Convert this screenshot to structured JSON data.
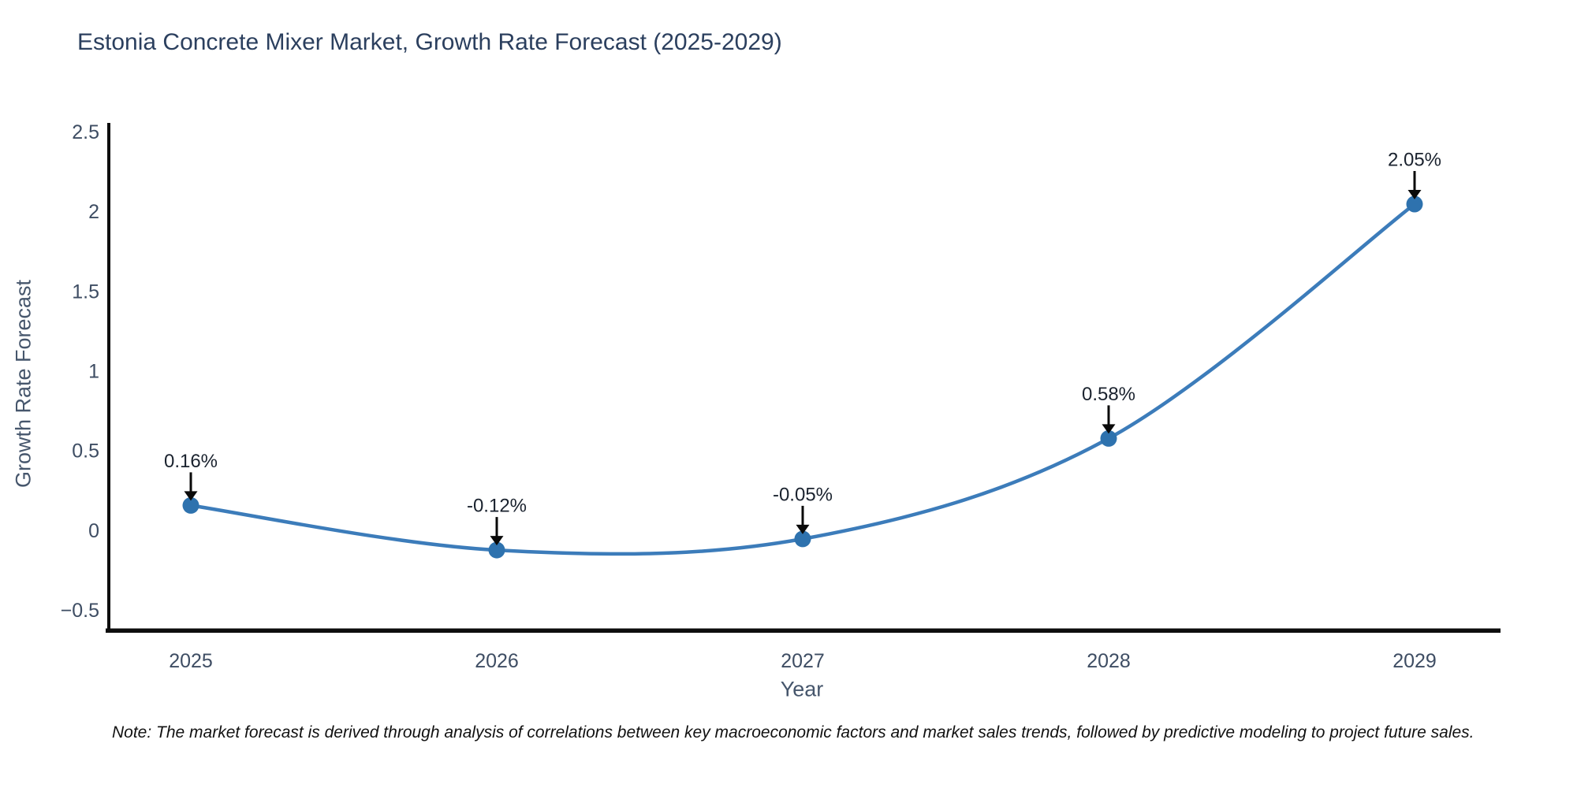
{
  "note": "Note: The market forecast is derived through analysis of correlations between key macroeconomic factors and market sales trends, followed by predictive modeling to project future sales.",
  "chart_data": {
    "type": "line",
    "title": "Estonia Concrete Mixer Market, Growth Rate Forecast (2025-2029)",
    "xlabel": "Year",
    "ylabel": "Growth Rate Forecast",
    "categories": [
      "2025",
      "2026",
      "2027",
      "2028",
      "2029"
    ],
    "values": [
      0.16,
      -0.12,
      -0.05,
      0.58,
      2.05
    ],
    "point_labels": [
      "0.16%",
      "-0.12%",
      "-0.05%",
      "0.58%",
      "2.05%"
    ],
    "ylim": [
      -0.5,
      2.5
    ],
    "yticks": [
      2.5,
      2,
      1.5,
      1,
      0.5,
      0,
      -0.5
    ],
    "ytick_labels": [
      "2.5",
      "2",
      "1.5",
      "1",
      "0.5",
      "0",
      "−0.5"
    ],
    "grid": false,
    "legend": "none",
    "curve": "smooth-spline",
    "annotation_style": "value label above point with black down-arrow",
    "colors": {
      "line": "#3c7cba",
      "marker": "#2e72ae",
      "arrow": "#0a0a0a",
      "spine": "#0d0d0d",
      "tick_text": "#3e4d63",
      "annotation_text": "#1a222e",
      "title_text": "#2b3f5e",
      "axis_label_text": "#46566c",
      "background": "#ffffff"
    }
  }
}
